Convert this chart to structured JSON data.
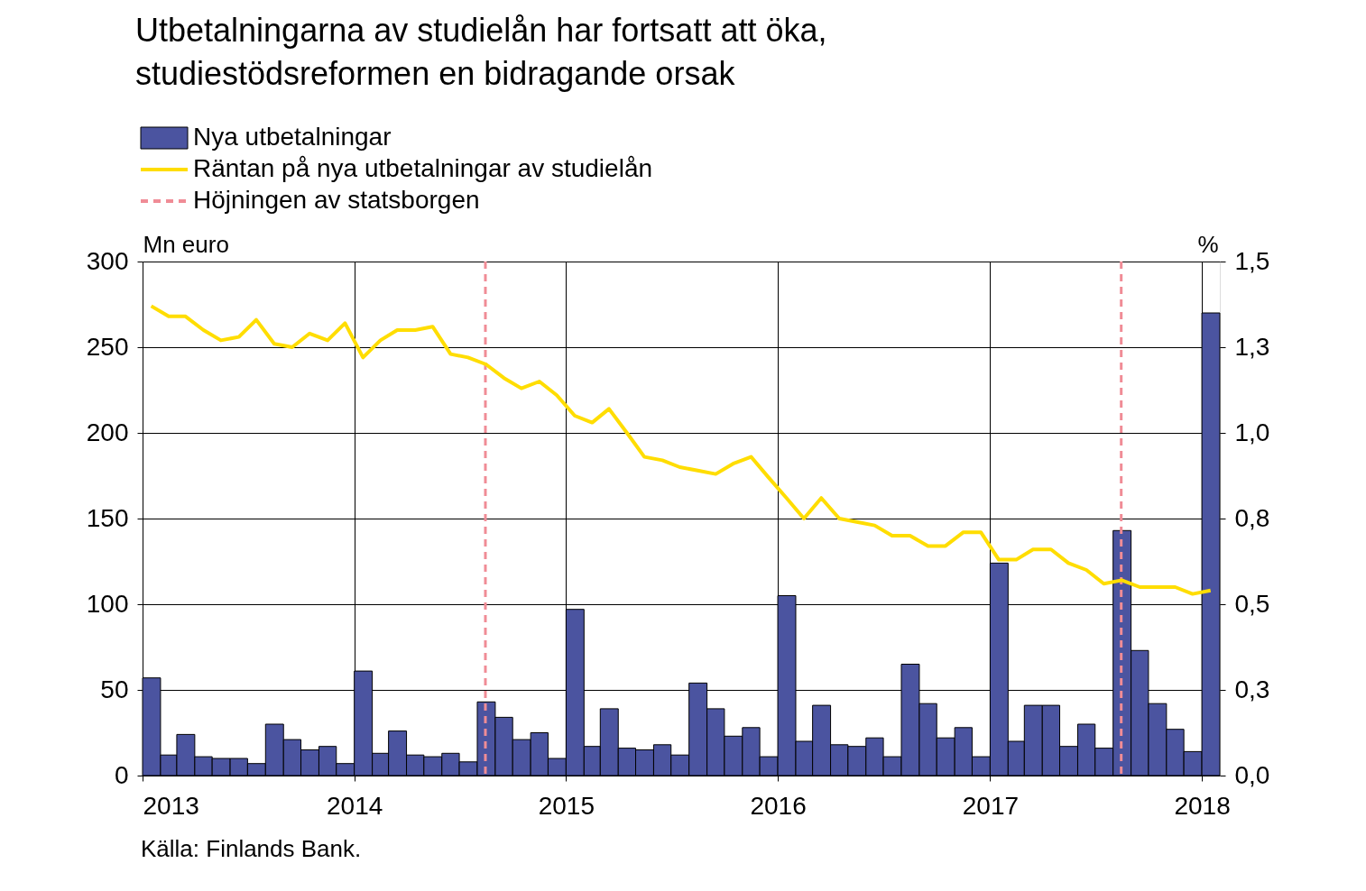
{
  "chart_data": {
    "type": "bar",
    "title": "Utbetalningarna av studielån har fortsatt att öka,\nstudiestödsreformen en bidragande orsak",
    "ylabel": "Mn euro",
    "y2label": "%",
    "x": [
      "2013-01-16",
      "2013-02-15",
      "2013-03-16",
      "2013-04-16",
      "2013-05-16",
      "2013-06-16",
      "2013-07-16",
      "2013-08-16",
      "2013-09-16",
      "2013-10-16",
      "2013-11-16",
      "2013-12-16",
      "2014-01-16",
      "2014-02-15",
      "2014-03-16",
      "2014-04-16",
      "2014-05-16",
      "2014-06-16",
      "2014-07-16",
      "2014-08-16",
      "2014-09-16",
      "2014-10-16",
      "2014-11-16",
      "2014-12-16",
      "2015-01-16",
      "2015-02-15",
      "2015-03-16",
      "2015-04-16",
      "2015-05-16",
      "2015-06-16",
      "2015-07-16",
      "2015-08-16",
      "2015-09-16",
      "2015-10-16",
      "2015-11-16",
      "2015-12-16",
      "2016-01-16",
      "2016-02-15",
      "2016-03-16",
      "2016-04-16",
      "2016-05-16",
      "2016-06-16",
      "2016-07-16",
      "2016-08-16",
      "2016-09-16",
      "2016-10-16",
      "2016-11-16",
      "2016-12-16",
      "2017-01-16",
      "2017-02-15",
      "2017-03-16",
      "2017-04-16",
      "2017-05-16",
      "2017-06-16",
      "2017-07-16",
      "2017-08-16",
      "2017-09-16",
      "2017-10-16",
      "2017-11-16",
      "2017-12-16",
      "2018-01-16"
    ],
    "series": [
      {
        "name": "Nya utbetalningar",
        "color": "#4b54a0",
        "values": [
          57,
          12,
          24,
          11,
          10,
          10,
          7,
          30,
          21,
          15,
          17,
          7,
          61,
          13,
          26,
          12,
          11,
          13,
          8,
          43,
          34,
          21,
          25,
          10,
          97,
          17,
          39,
          16,
          15,
          18,
          12,
          54,
          39,
          23,
          28,
          11,
          105,
          20,
          41,
          18,
          17,
          22,
          11,
          65,
          42,
          22,
          28,
          11,
          124,
          20,
          41,
          41,
          17,
          30,
          16,
          143,
          73,
          42,
          27,
          14,
          270
        ]
      },
      {
        "name": "Räntan på nya utbetalningar av studielån",
        "type": "line",
        "axis": "y2",
        "color": "#ffdd00",
        "values": [
          1.37,
          1.34,
          1.34,
          1.3,
          1.27,
          1.28,
          1.33,
          1.26,
          1.25,
          1.29,
          1.27,
          1.32,
          1.22,
          1.27,
          1.3,
          1.3,
          1.31,
          1.23,
          1.22,
          1.2,
          1.16,
          1.13,
          1.15,
          1.11,
          1.05,
          1.03,
          1.07,
          1.0,
          0.93,
          0.92,
          0.9,
          0.89,
          0.88,
          0.91,
          0.93,
          0.87,
          0.81,
          0.75,
          0.81,
          0.75,
          0.74,
          0.73,
          0.7,
          0.7,
          0.67,
          0.67,
          0.71,
          0.71,
          0.63,
          0.63,
          0.66,
          0.66,
          0.62,
          0.6,
          0.56,
          0.57,
          0.55,
          0.55,
          0.55,
          0.53,
          0.54
        ]
      }
    ],
    "ref_lines": [
      {
        "axis": "x",
        "value": "2014-08-15",
        "label": "Höjningen av statsborgen",
        "color": "#f08c96",
        "line_style": "dashed"
      },
      {
        "axis": "x",
        "value": "2017-08-15",
        "color": "#f08c96",
        "line_style": "dashed"
      }
    ],
    "xlim": [
      "2013-01-01",
      "2018-02-01"
    ],
    "xticks": [
      "2013",
      "2014",
      "2015",
      "2016",
      "2017",
      "2018"
    ],
    "ylim": [
      0,
      300
    ],
    "yticks": [
      0,
      50,
      100,
      150,
      200,
      250,
      300
    ],
    "y2lim": [
      0,
      1.5
    ],
    "y2ticks": [
      {
        "value": 0,
        "label": "0,0"
      },
      {
        "value": 0.25,
        "label": "0,3"
      },
      {
        "value": 0.5,
        "label": "0,5"
      },
      {
        "value": 0.75,
        "label": "0,8"
      },
      {
        "value": 1.0,
        "label": "1,0"
      },
      {
        "value": 1.25,
        "label": "1,3"
      },
      {
        "value": 1.5,
        "label": "1,5"
      }
    ],
    "grid": true,
    "legend": "top left",
    "annotations": [
      "Källa: Finlands Bank."
    ]
  }
}
